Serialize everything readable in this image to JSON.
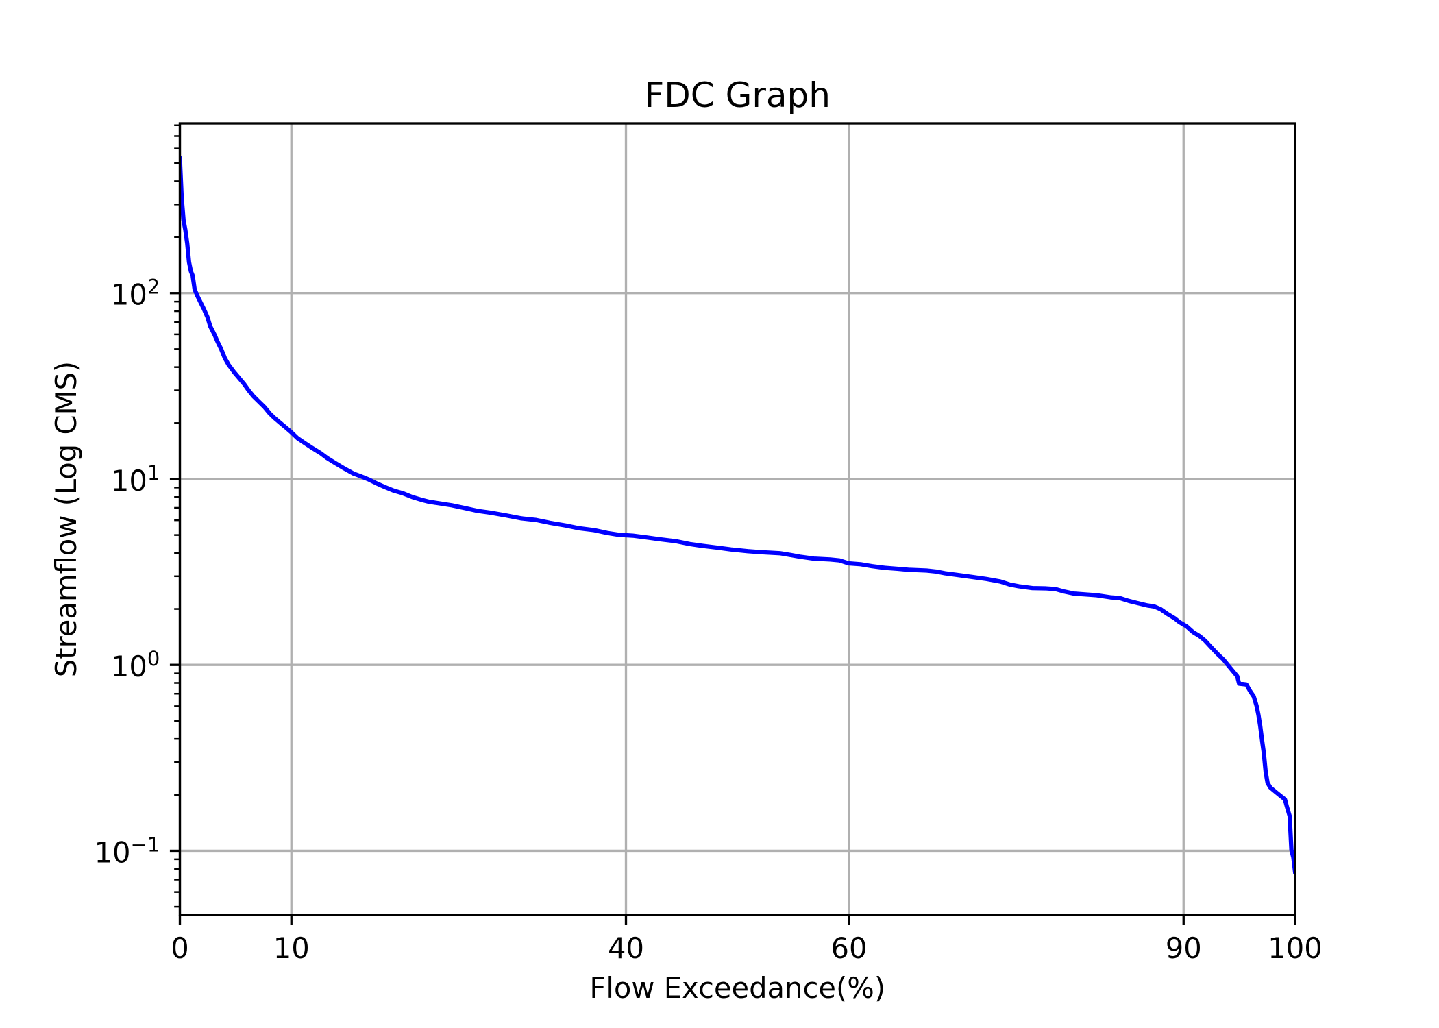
{
  "chart_data": {
    "type": "line",
    "title": "FDC Graph",
    "xlabel": "Flow Exceedance(%)",
    "ylabel": "Streamflow (Log CMS)",
    "xlim": [
      0,
      100
    ],
    "ylim": [
      0.0452,
      819
    ],
    "y_scale": "log",
    "grid": true,
    "grid_color": "#b0b0b0",
    "x_ticks": [
      {
        "value": 0,
        "label": "0"
      },
      {
        "value": 10,
        "label": "10"
      },
      {
        "value": 40,
        "label": "40"
      },
      {
        "value": 60,
        "label": "60"
      },
      {
        "value": 90,
        "label": "90"
      },
      {
        "value": 100,
        "label": "100"
      }
    ],
    "y_ticks": [
      {
        "value": 0.1,
        "base": "10",
        "exp": "−1"
      },
      {
        "value": 1,
        "base": "10",
        "exp": "0"
      },
      {
        "value": 10,
        "base": "10",
        "exp": "1"
      },
      {
        "value": 100,
        "base": "10",
        "exp": "2"
      }
    ],
    "series": [
      {
        "color": "#0000ff",
        "x": [
          0,
          0.16,
          0.33,
          0.49,
          0.66,
          0.82,
          0.99,
          1.15,
          1.32,
          1.57,
          1.89,
          2.14,
          2.47,
          2.72,
          3.13,
          3.38,
          3.71,
          4.04,
          4.37,
          4.86,
          5.35,
          5.77,
          6.18,
          6.59,
          7.08,
          7.58,
          8.07,
          8.48,
          8.98,
          9.47,
          9.97,
          10.54,
          11.2,
          11.78,
          12.6,
          13.18,
          13.92,
          14.74,
          15.57,
          16.31,
          16.97,
          17.63,
          18.37,
          19.19,
          20.02,
          20.84,
          21.66,
          22.32,
          23.31,
          24.38,
          25.54,
          26.69,
          27.84,
          29.24,
          30.56,
          31.96,
          33.2,
          34.6,
          35.83,
          37.15,
          38.3,
          39.37,
          40.61,
          41.85,
          43.08,
          44.48,
          45.72,
          46.87,
          48.11,
          49.42,
          50.91,
          52.14,
          53.79,
          54.78,
          55.6,
          56.84,
          58.32,
          59.14,
          59.97,
          61.04,
          62.03,
          63.18,
          64.33,
          65.32,
          66.97,
          67.79,
          68.62,
          69.85,
          71.09,
          72.32,
          73.56,
          74.38,
          75.21,
          76.44,
          77.68,
          78.5,
          79.32,
          80.15,
          81.38,
          82.21,
          83.44,
          84.27,
          85.09,
          85.75,
          86.74,
          87.4,
          87.97,
          88.55,
          89.21,
          89.62,
          90.28,
          90.86,
          91.43,
          91.93,
          92.5,
          93.08,
          93.57,
          93.99,
          94.4,
          94.81,
          94.98,
          95.63,
          95.96,
          96.29,
          96.54,
          96.71,
          96.87,
          97.03,
          97.2,
          97.36,
          97.53,
          97.78,
          98.27,
          98.76,
          99.09,
          99.26,
          99.51,
          99.67,
          99.84,
          100
        ],
        "y": [
          530,
          327,
          246,
          219,
          185,
          147,
          131,
          124,
          105,
          96.6,
          88.3,
          82.4,
          74.4,
          66.4,
          59.3,
          54.7,
          49.9,
          44.6,
          41.2,
          37.6,
          34.7,
          32.4,
          29.9,
          27.9,
          26.1,
          24.4,
          22.5,
          21.3,
          20.1,
          19.0,
          17.9,
          16.6,
          15.6,
          14.8,
          13.8,
          13.0,
          12.2,
          11.4,
          10.7,
          10.3,
          9.92,
          9.48,
          9.06,
          8.65,
          8.37,
          8.0,
          7.73,
          7.55,
          7.39,
          7.22,
          6.98,
          6.74,
          6.59,
          6.37,
          6.15,
          6.02,
          5.81,
          5.62,
          5.43,
          5.31,
          5.13,
          5.01,
          4.96,
          4.85,
          4.74,
          4.63,
          4.47,
          4.37,
          4.28,
          4.18,
          4.09,
          4.04,
          3.99,
          3.9,
          3.82,
          3.73,
          3.69,
          3.65,
          3.52,
          3.48,
          3.4,
          3.33,
          3.29,
          3.25,
          3.22,
          3.18,
          3.11,
          3.04,
          2.97,
          2.9,
          2.81,
          2.71,
          2.65,
          2.59,
          2.58,
          2.56,
          2.48,
          2.42,
          2.39,
          2.37,
          2.31,
          2.29,
          2.21,
          2.16,
          2.09,
          2.06,
          1.99,
          1.88,
          1.78,
          1.7,
          1.61,
          1.5,
          1.43,
          1.35,
          1.24,
          1.14,
          1.07,
          0.996,
          0.93,
          0.869,
          0.793,
          0.785,
          0.724,
          0.677,
          0.604,
          0.539,
          0.47,
          0.396,
          0.334,
          0.266,
          0.232,
          0.219,
          0.207,
          0.196,
          0.189,
          0.173,
          0.154,
          0.101,
          0.0923,
          0.077
        ]
      }
    ]
  }
}
